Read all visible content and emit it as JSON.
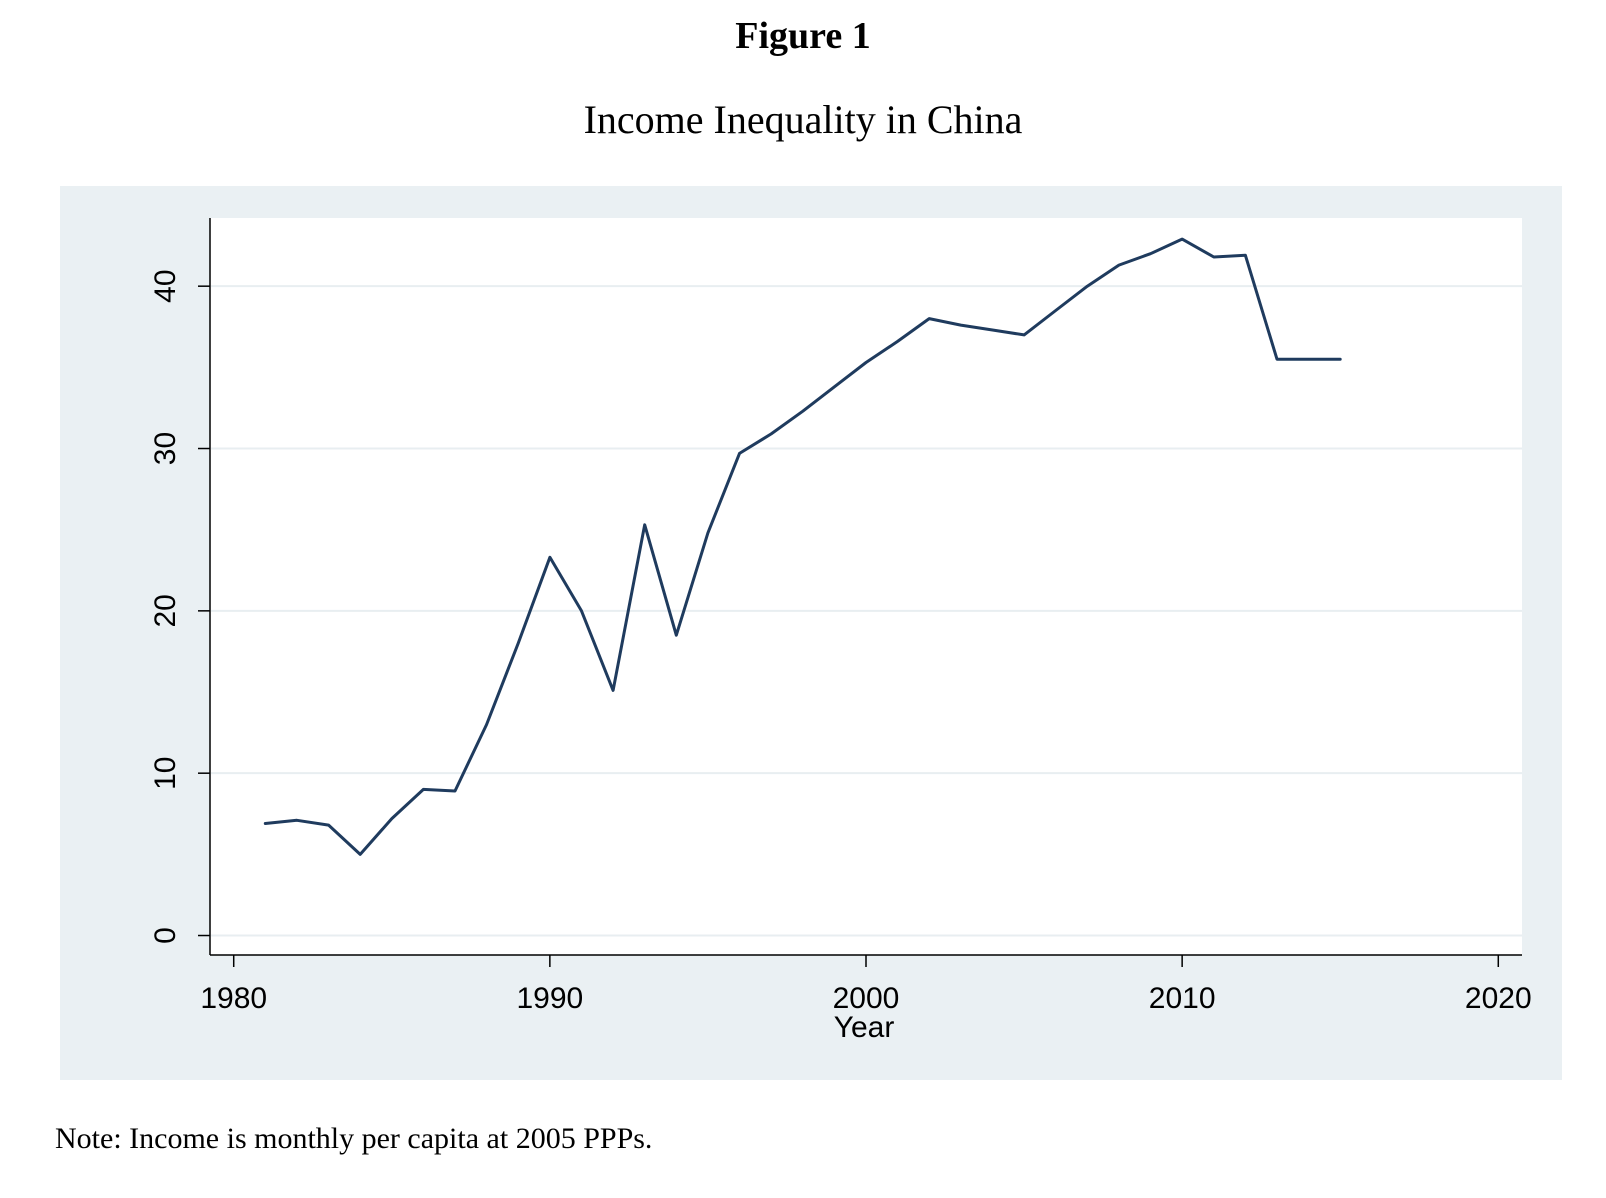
{
  "figure_label": "Figure 1",
  "note": "Note: Income is monthly per capita at 2005 PPPs.",
  "colors": {
    "outer_bg": "#eaf0f3",
    "plot_bg": "#ffffff",
    "grid": "#e8eef1",
    "line": "#1f3b5e",
    "axis": "#000000"
  },
  "chart_data": {
    "type": "line",
    "title": "Income Inequality in China",
    "xlabel": "Year",
    "ylabel": "",
    "xlim": [
      1979.25,
      2020.75
    ],
    "ylim": [
      -1.2,
      44.2
    ],
    "xticks": [
      1980,
      1990,
      2000,
      2010,
      2020
    ],
    "yticks": [
      0,
      10,
      20,
      30,
      40
    ],
    "grid": true,
    "legend": false,
    "series": [
      {
        "name": "Income inequality",
        "x": [
          1981,
          1982,
          1983,
          1984,
          1985,
          1986,
          1987,
          1988,
          1989,
          1990,
          1991,
          1992,
          1993,
          1994,
          1995,
          1996,
          1997,
          1998,
          1999,
          2000,
          2001,
          2002,
          2003,
          2004,
          2005,
          2006,
          2007,
          2008,
          2009,
          2010,
          2011,
          2012,
          2013,
          2014,
          2015
        ],
        "y": [
          6.9,
          7.1,
          6.8,
          5.0,
          7.2,
          9.0,
          8.9,
          13.0,
          18.0,
          23.3,
          20.0,
          15.1,
          25.3,
          18.5,
          24.8,
          29.7,
          30.9,
          32.3,
          33.8,
          35.3,
          36.6,
          38.0,
          37.6,
          37.3,
          37.0,
          38.5,
          40.0,
          41.3,
          42.0,
          42.9,
          41.8,
          41.9,
          35.5,
          35.5,
          35.5
        ]
      }
    ]
  }
}
